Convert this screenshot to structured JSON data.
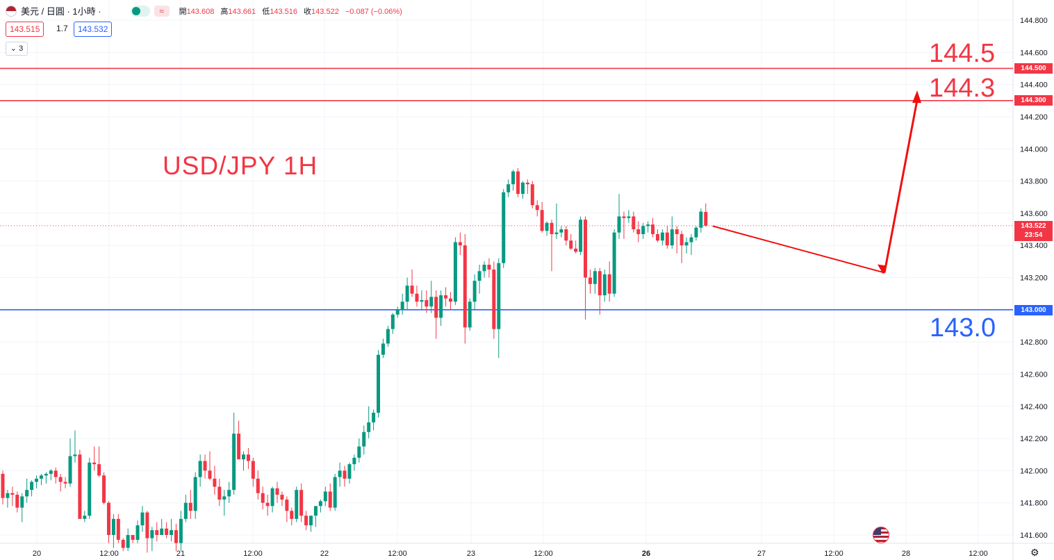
{
  "legend": {
    "symbol": "美元 / 日圓 · 1小時 ·",
    "open_label": "開",
    "open": "143.608",
    "high_label": "高",
    "high": "143.661",
    "low_label": "低",
    "low": "143.516",
    "close_label": "收",
    "close": "143.522",
    "change": "−0.087 (−0.06%)",
    "badge_icon": "≈"
  },
  "trade": {
    "sell": "143.515",
    "spread": "1.7",
    "buy": "143.532"
  },
  "indicators_collapse": "3",
  "watermark": "USD/JPY 1H",
  "annotations": {
    "r1": "144.5",
    "r2": "144.3",
    "b1": "143.0"
  },
  "tags": {
    "l1": "144.500",
    "l2": "144.300",
    "l3": "143.000",
    "current": "143.522",
    "countdown": "23:54"
  },
  "colors": {
    "up": "#089981",
    "down": "#f23645",
    "resistance": "#f23645",
    "support": "#2962ff",
    "arrow": "#f20d0d"
  },
  "chart_data": {
    "type": "candlestick",
    "title": "",
    "y_axis": {
      "ticks": [
        "144.800",
        "144.600",
        "144.400",
        "144.200",
        "144.000",
        "143.800",
        "143.600",
        "143.400",
        "143.200",
        "143.000",
        "142.800",
        "142.600",
        "142.400",
        "142.200",
        "142.000",
        "141.800",
        "141.600"
      ],
      "range": [
        141.55,
        144.9
      ]
    },
    "x_axis": {
      "ticks": [
        "20",
        "12:00",
        "21",
        "12:00",
        "22",
        "12:00",
        "23",
        "12:00",
        "26",
        "27",
        "12:00",
        "28",
        "12:00"
      ]
    },
    "horizontal_lines": [
      {
        "price": 144.5,
        "color": "#f23645"
      },
      {
        "price": 144.3,
        "color": "#f23645"
      },
      {
        "price": 143.0,
        "color": "#2962ff"
      }
    ],
    "current_price": 143.522,
    "projection": [
      143.52,
      143.23,
      144.32
    ],
    "candles": [
      [
        141.98,
        142.0,
        141.79,
        141.83
      ],
      [
        141.83,
        141.88,
        141.77,
        141.86
      ],
      [
        141.86,
        141.9,
        141.78,
        141.85
      ],
      [
        141.85,
        141.87,
        141.74,
        141.77
      ],
      [
        141.77,
        141.86,
        141.68,
        141.84
      ],
      [
        141.84,
        141.95,
        141.8,
        141.88
      ],
      [
        141.88,
        141.94,
        141.84,
        141.93
      ],
      [
        141.93,
        141.97,
        141.89,
        141.95
      ],
      [
        141.95,
        141.98,
        141.91,
        141.97
      ],
      [
        141.97,
        141.99,
        141.92,
        141.98
      ],
      [
        141.98,
        142.01,
        141.94,
        142.0
      ],
      [
        142.0,
        142.02,
        141.92,
        141.96
      ],
      [
        141.96,
        141.98,
        141.87,
        141.93
      ],
      [
        141.93,
        141.96,
        141.89,
        141.92
      ],
      [
        141.92,
        142.2,
        141.9,
        142.09
      ],
      [
        142.09,
        142.25,
        142.05,
        142.1
      ],
      [
        142.1,
        142.13,
        141.7,
        141.7
      ],
      [
        141.7,
        141.75,
        141.68,
        141.72
      ],
      [
        141.72,
        142.08,
        141.7,
        142.05
      ],
      [
        142.05,
        142.15,
        142.0,
        142.04
      ],
      [
        142.04,
        142.15,
        141.96,
        141.97
      ],
      [
        141.97,
        141.99,
        141.79,
        141.8
      ],
      [
        141.8,
        141.81,
        141.55,
        141.6
      ],
      [
        141.6,
        141.73,
        141.52,
        141.7
      ],
      [
        141.7,
        141.73,
        141.55,
        141.57
      ],
      [
        141.57,
        141.58,
        141.5,
        141.52
      ],
      [
        141.52,
        141.64,
        141.5,
        141.6
      ],
      [
        141.6,
        141.6,
        141.55,
        141.57
      ],
      [
        141.57,
        141.69,
        141.55,
        141.66
      ],
      [
        141.66,
        141.78,
        141.62,
        141.74
      ],
      [
        141.74,
        141.75,
        141.49,
        141.58
      ],
      [
        141.58,
        141.65,
        141.5,
        141.63
      ],
      [
        141.63,
        141.68,
        141.56,
        141.6
      ],
      [
        141.6,
        141.7,
        141.6,
        141.64
      ],
      [
        141.64,
        141.68,
        141.58,
        141.6
      ],
      [
        141.6,
        141.7,
        141.56,
        141.63
      ],
      [
        141.63,
        141.67,
        141.5,
        141.55
      ],
      [
        141.55,
        141.75,
        141.5,
        141.7
      ],
      [
        141.7,
        141.85,
        141.68,
        141.8
      ],
      [
        141.8,
        141.88,
        141.7,
        141.75
      ],
      [
        141.75,
        141.99,
        141.7,
        141.96
      ],
      [
        141.96,
        142.1,
        141.9,
        142.06
      ],
      [
        142.06,
        142.1,
        141.95,
        142.0
      ],
      [
        142.0,
        142.12,
        141.94,
        141.95
      ],
      [
        141.95,
        142.03,
        141.85,
        141.9
      ],
      [
        141.9,
        141.95,
        141.78,
        141.82
      ],
      [
        141.82,
        141.88,
        141.72,
        141.84
      ],
      [
        141.84,
        141.93,
        141.8,
        141.88
      ],
      [
        141.88,
        142.36,
        141.85,
        142.23
      ],
      [
        142.23,
        142.31,
        142.1,
        142.07
      ],
      [
        142.07,
        142.12,
        142.0,
        142.1
      ],
      [
        142.1,
        142.14,
        142.01,
        142.06
      ],
      [
        142.06,
        142.08,
        141.9,
        141.95
      ],
      [
        141.95,
        142.0,
        141.82,
        141.86
      ],
      [
        141.86,
        141.9,
        141.76,
        141.8
      ],
      [
        141.8,
        141.85,
        141.72,
        141.78
      ],
      [
        141.78,
        141.9,
        141.74,
        141.89
      ],
      [
        141.89,
        141.93,
        141.8,
        141.85
      ],
      [
        141.85,
        141.87,
        141.78,
        141.82
      ],
      [
        141.82,
        141.84,
        141.68,
        141.75
      ],
      [
        141.75,
        141.77,
        141.66,
        141.7
      ],
      [
        141.7,
        141.9,
        141.68,
        141.88
      ],
      [
        141.88,
        141.92,
        141.68,
        141.72
      ],
      [
        141.72,
        141.75,
        141.63,
        141.66
      ],
      [
        141.66,
        141.7,
        141.62,
        141.72
      ],
      [
        141.72,
        141.75,
        141.65,
        141.78
      ],
      [
        141.78,
        141.82,
        141.74,
        141.81
      ],
      [
        141.81,
        141.9,
        141.78,
        141.87
      ],
      [
        141.87,
        141.92,
        141.75,
        141.77
      ],
      [
        141.77,
        141.98,
        141.75,
        141.96
      ],
      [
        141.96,
        142.05,
        141.9,
        142.0
      ],
      [
        142.0,
        142.03,
        141.9,
        141.95
      ],
      [
        141.95,
        142.05,
        141.92,
        142.04
      ],
      [
        142.04,
        142.1,
        142.0,
        142.08
      ],
      [
        142.08,
        142.2,
        142.05,
        142.15
      ],
      [
        142.15,
        142.28,
        142.1,
        142.24
      ],
      [
        142.24,
        142.4,
        142.2,
        142.3
      ],
      [
        142.3,
        142.38,
        142.25,
        142.36
      ],
      [
        142.36,
        142.75,
        142.33,
        142.72
      ],
      [
        142.72,
        142.82,
        142.7,
        142.79
      ],
      [
        142.79,
        142.9,
        142.77,
        142.88
      ],
      [
        142.88,
        142.98,
        142.85,
        142.97
      ],
      [
        142.97,
        143.02,
        142.95,
        143.0
      ],
      [
        143.0,
        143.1,
        142.97,
        143.05
      ],
      [
        143.05,
        143.2,
        143.0,
        143.15
      ],
      [
        143.15,
        143.25,
        143.08,
        143.1
      ],
      [
        143.1,
        143.15,
        143.02,
        143.05
      ],
      [
        143.05,
        143.12,
        143.0,
        143.06
      ],
      [
        143.06,
        143.12,
        142.98,
        143.02
      ],
      [
        143.02,
        143.18,
        142.98,
        143.08
      ],
      [
        143.08,
        143.12,
        142.82,
        142.95
      ],
      [
        142.95,
        143.12,
        142.9,
        143.09
      ],
      [
        143.09,
        143.14,
        143.02,
        143.07
      ],
      [
        143.07,
        143.11,
        143.0,
        143.05
      ],
      [
        143.05,
        143.45,
        143.03,
        143.42
      ],
      [
        143.42,
        143.48,
        143.34,
        143.4
      ],
      [
        143.4,
        143.47,
        142.79,
        142.89
      ],
      [
        142.89,
        143.07,
        142.87,
        143.05
      ],
      [
        143.05,
        143.22,
        143.0,
        143.18
      ],
      [
        143.18,
        143.28,
        143.1,
        143.24
      ],
      [
        143.24,
        143.3,
        143.2,
        143.28
      ],
      [
        143.28,
        143.32,
        143.2,
        143.25
      ],
      [
        143.25,
        143.3,
        142.82,
        142.88
      ],
      [
        142.88,
        143.32,
        142.7,
        143.29
      ],
      [
        143.29,
        143.75,
        143.26,
        143.73
      ],
      [
        143.73,
        143.81,
        143.7,
        143.78
      ],
      [
        143.78,
        143.87,
        143.74,
        143.86
      ],
      [
        143.86,
        143.88,
        143.7,
        143.72
      ],
      [
        143.72,
        143.8,
        143.69,
        143.79
      ],
      [
        143.79,
        143.81,
        143.72,
        143.78
      ],
      [
        143.78,
        143.8,
        143.63,
        143.65
      ],
      [
        143.65,
        143.68,
        143.58,
        143.62
      ],
      [
        143.62,
        143.67,
        143.48,
        143.49
      ],
      [
        143.49,
        143.55,
        143.46,
        143.54
      ],
      [
        143.54,
        143.56,
        143.24,
        143.47
      ],
      [
        143.47,
        143.66,
        143.44,
        143.48
      ],
      [
        143.48,
        143.52,
        143.45,
        143.5
      ],
      [
        143.5,
        143.52,
        143.4,
        143.43
      ],
      [
        143.43,
        143.47,
        143.37,
        143.38
      ],
      [
        143.38,
        143.43,
        143.35,
        143.36
      ],
      [
        143.36,
        143.58,
        143.34,
        143.56
      ],
      [
        143.56,
        143.58,
        142.94,
        143.2
      ],
      [
        143.2,
        143.25,
        143.1,
        143.16
      ],
      [
        143.16,
        143.26,
        143.1,
        143.24
      ],
      [
        143.24,
        143.26,
        142.97,
        143.09
      ],
      [
        143.09,
        143.25,
        143.05,
        143.22
      ],
      [
        143.22,
        143.3,
        143.05,
        143.1
      ],
      [
        143.1,
        143.5,
        143.08,
        143.48
      ],
      [
        143.48,
        143.72,
        143.44,
        143.58
      ],
      [
        143.58,
        143.61,
        143.44,
        143.57
      ],
      [
        143.57,
        143.62,
        143.54,
        143.58
      ],
      [
        143.58,
        143.61,
        143.48,
        143.5
      ],
      [
        143.5,
        143.55,
        143.42,
        143.47
      ],
      [
        143.47,
        143.54,
        143.44,
        143.52
      ],
      [
        143.52,
        143.55,
        143.48,
        143.53
      ],
      [
        143.53,
        143.57,
        143.45,
        143.47
      ],
      [
        143.47,
        143.5,
        143.42,
        143.43
      ],
      [
        143.43,
        143.5,
        143.4,
        143.48
      ],
      [
        143.48,
        143.52,
        143.38,
        143.4
      ],
      [
        143.4,
        143.58,
        143.38,
        143.5
      ],
      [
        143.5,
        143.52,
        143.35,
        143.47
      ],
      [
        143.47,
        143.49,
        143.29,
        143.4
      ],
      [
        143.4,
        143.45,
        143.35,
        143.42
      ],
      [
        143.42,
        143.47,
        143.34,
        143.45
      ],
      [
        143.45,
        143.52,
        143.43,
        143.51
      ],
      [
        143.51,
        143.63,
        143.48,
        143.61
      ],
      [
        143.608,
        143.661,
        143.516,
        143.522
      ]
    ]
  }
}
